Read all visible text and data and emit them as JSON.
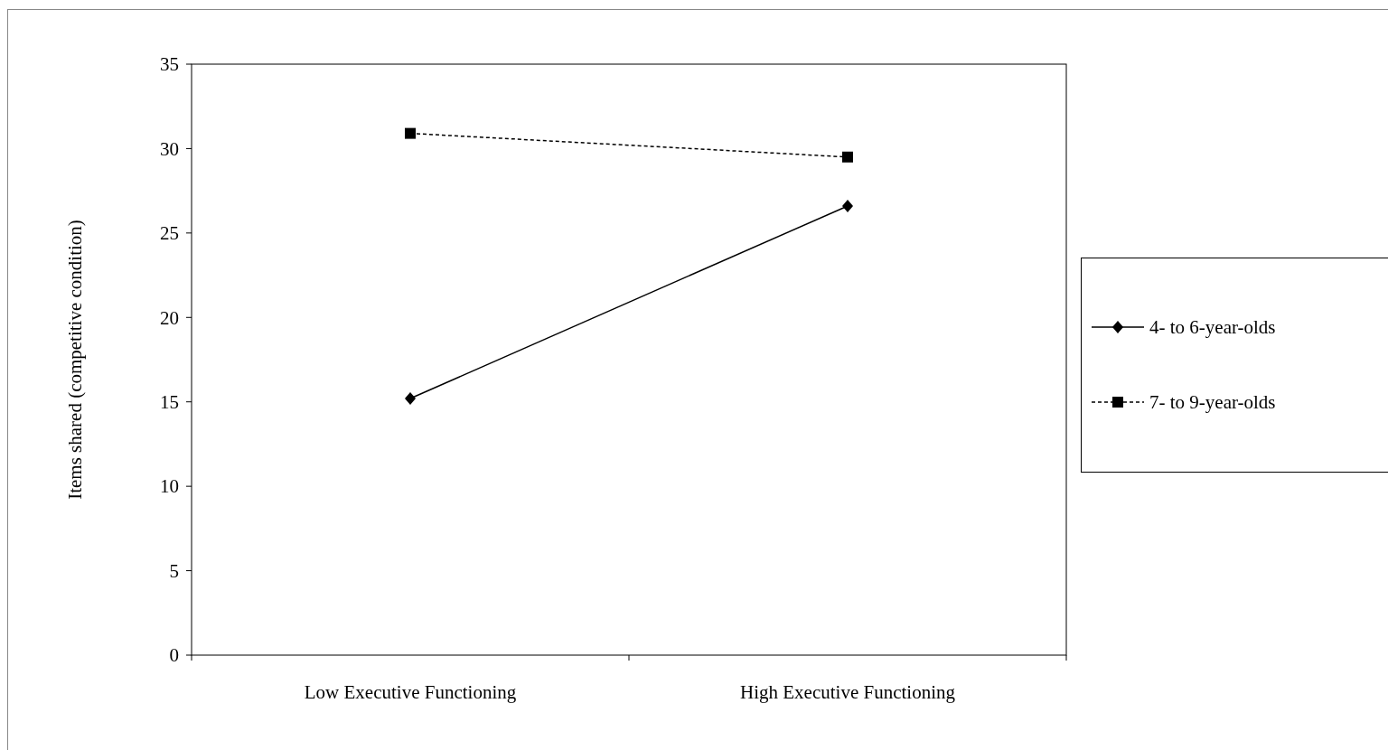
{
  "chart_data": {
    "type": "line",
    "ylabel": "Items shared (competitive condition)",
    "categories": [
      "Low Executive Functioning",
      "High Executive Functioning"
    ],
    "series": [
      {
        "name": "4- to 6-year-olds",
        "color": "#000000",
        "values": [
          15.2,
          26.6
        ],
        "marker": "diamond",
        "line_style": "solid"
      },
      {
        "name": "7- to 9-year-olds",
        "color": "#000000",
        "values": [
          30.9,
          29.5
        ],
        "marker": "square",
        "line_style": "dashed"
      }
    ],
    "ylim": [
      0,
      35
    ],
    "yticks": [
      0,
      5,
      10,
      15,
      20,
      25,
      30,
      35
    ],
    "grid": false,
    "legend": "right"
  }
}
